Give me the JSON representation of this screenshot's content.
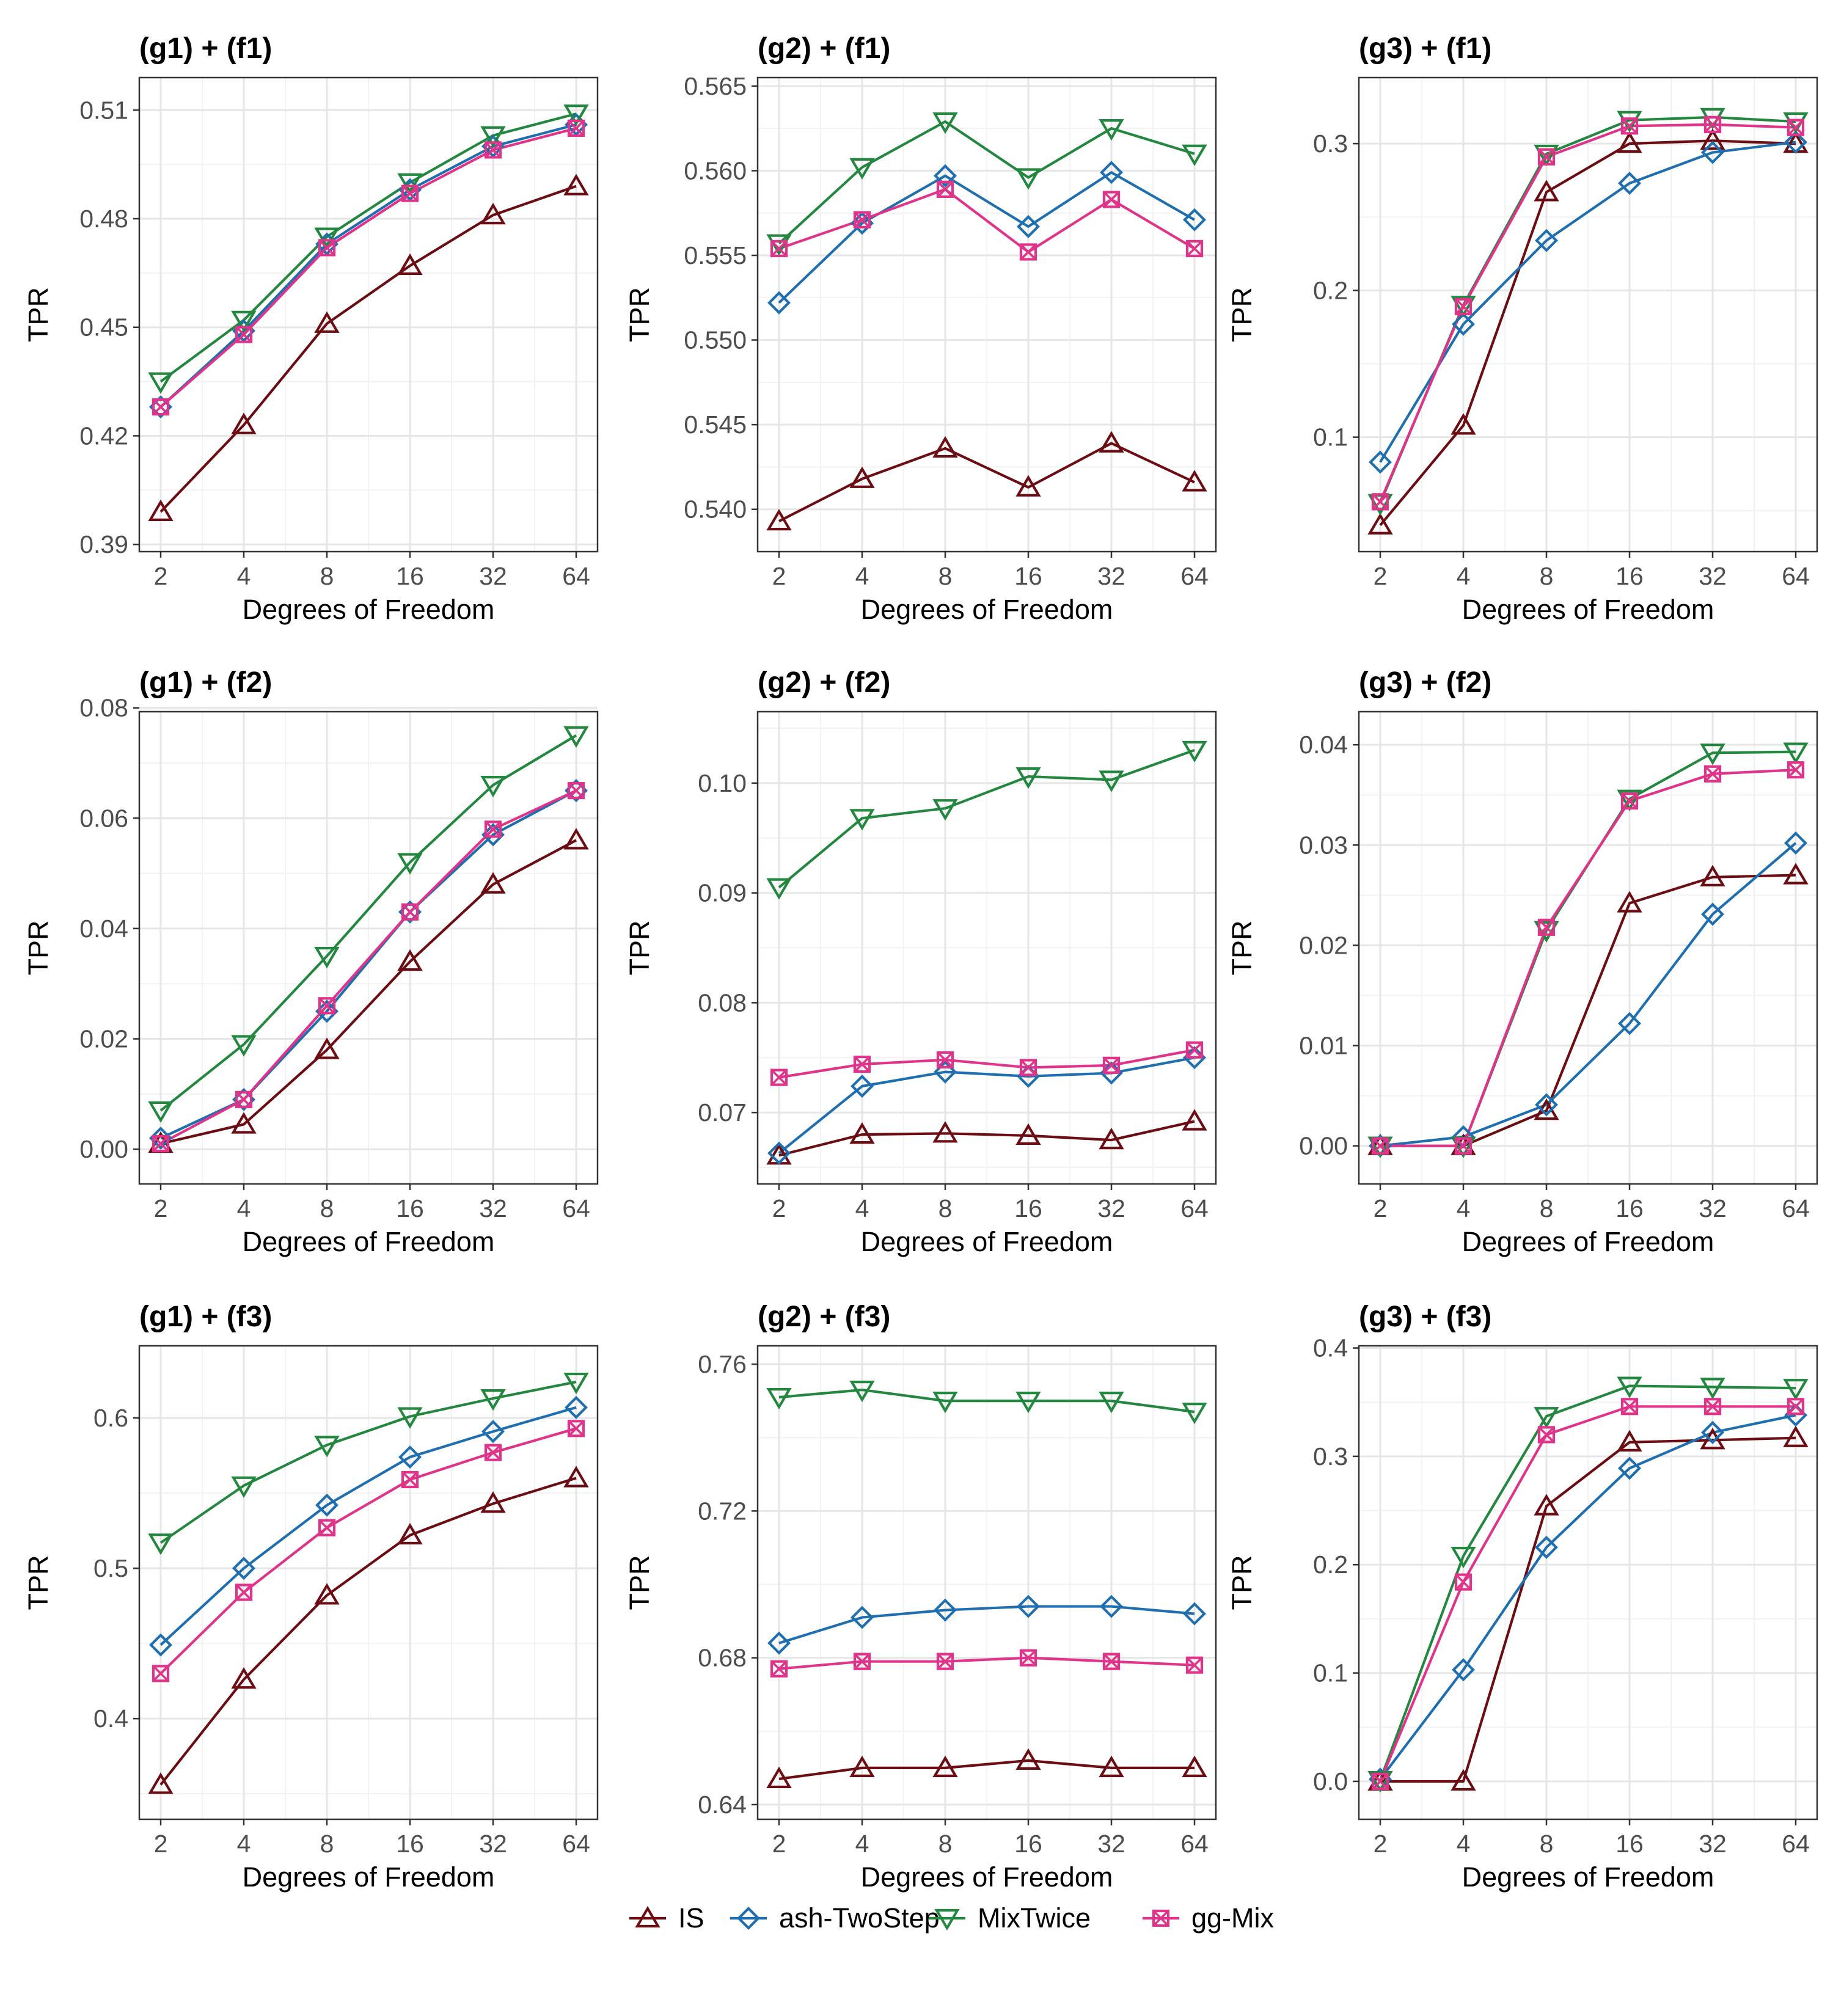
{
  "xlabel": "Degrees of Freedom",
  "ylabel": "TPR",
  "x_ticks": [
    "2",
    "4",
    "8",
    "16",
    "32",
    "64"
  ],
  "series_styles": [
    {
      "name": "IS",
      "color": "#6b0d12",
      "marker": "triangle-up"
    },
    {
      "name": "ash-TwoStep",
      "color": "#1f6fb0",
      "marker": "diamond"
    },
    {
      "name": "MixTwice",
      "color": "#23873f",
      "marker": "triangle-down"
    },
    {
      "name": "gg-Mix",
      "color": "#e0338a",
      "marker": "boxed-x"
    }
  ],
  "legend": {
    "position": "bottom",
    "items": [
      "IS",
      "ash-TwoStep",
      "MixTwice",
      "gg-Mix"
    ]
  },
  "chart_data": [
    {
      "type": "line",
      "title": "(g1) + (f1)",
      "xlabel": "Degrees of Freedom",
      "ylabel": "TPR",
      "categories": [
        "2",
        "4",
        "8",
        "16",
        "32",
        "64"
      ],
      "ylim": [
        0.388,
        0.519
      ],
      "yticks": [
        0.39,
        0.42,
        0.45,
        0.48,
        0.51
      ],
      "ytick_labels": [
        "0.39",
        "0.42",
        "0.45",
        "0.48",
        "0.51"
      ],
      "series": [
        {
          "name": "IS",
          "values": [
            0.399,
            0.423,
            0.451,
            0.467,
            0.481,
            0.489
          ]
        },
        {
          "name": "ash-TwoStep",
          "values": [
            0.428,
            0.449,
            0.473,
            0.488,
            0.5,
            0.506
          ]
        },
        {
          "name": "MixTwice",
          "values": [
            0.435,
            0.452,
            0.475,
            0.49,
            0.503,
            0.509
          ]
        },
        {
          "name": "gg-Mix",
          "values": [
            0.428,
            0.448,
            0.472,
            0.487,
            0.499,
            0.505
          ]
        }
      ]
    },
    {
      "type": "line",
      "title": "(g2) + (f1)",
      "xlabel": "Degrees of Freedom",
      "ylabel": "TPR",
      "categories": [
        "2",
        "4",
        "8",
        "16",
        "32",
        "64"
      ],
      "ylim": [
        0.5375,
        0.5655
      ],
      "yticks": [
        0.54,
        0.545,
        0.55,
        0.555,
        0.56,
        0.565
      ],
      "ytick_labels": [
        "0.540",
        "0.545",
        "0.550",
        "0.555",
        "0.560",
        "0.565"
      ],
      "series": [
        {
          "name": "IS",
          "values": [
            0.5393,
            0.5418,
            0.5436,
            0.5413,
            0.5439,
            0.5416
          ]
        },
        {
          "name": "ash-TwoStep",
          "values": [
            0.5522,
            0.5569,
            0.5597,
            0.5567,
            0.5599,
            0.5571
          ]
        },
        {
          "name": "MixTwice",
          "values": [
            0.5557,
            0.5602,
            0.5629,
            0.5596,
            0.5625,
            0.561
          ]
        },
        {
          "name": "gg-Mix",
          "values": [
            0.5554,
            0.5571,
            0.5589,
            0.5552,
            0.5583,
            0.5554
          ]
        }
      ]
    },
    {
      "type": "line",
      "title": "(g3) + (f1)",
      "xlabel": "Degrees of Freedom",
      "ylabel": "TPR",
      "categories": [
        "2",
        "4",
        "8",
        "16",
        "32",
        "64"
      ],
      "ylim": [
        0.022,
        0.345
      ],
      "yticks": [
        0.1,
        0.2,
        0.3
      ],
      "ytick_labels": [
        "0.1",
        "0.2",
        "0.3"
      ],
      "series": [
        {
          "name": "IS",
          "values": [
            0.04,
            0.108,
            0.267,
            0.3,
            0.302,
            0.3
          ]
        },
        {
          "name": "ash-TwoStep",
          "values": [
            0.083,
            0.177,
            0.234,
            0.273,
            0.294,
            0.301
          ]
        },
        {
          "name": "MixTwice",
          "values": [
            0.055,
            0.19,
            0.293,
            0.316,
            0.318,
            0.315
          ]
        },
        {
          "name": "gg-Mix",
          "values": [
            0.056,
            0.189,
            0.291,
            0.312,
            0.313,
            0.311
          ]
        }
      ]
    },
    {
      "type": "line",
      "title": "(g1) + (f2)",
      "xlabel": "Degrees of Freedom",
      "ylabel": "TPR",
      "categories": [
        "2",
        "4",
        "8",
        "16",
        "32",
        "64"
      ],
      "ylim": [
        -0.0063,
        0.0793
      ],
      "yticks": [
        0.0,
        0.02,
        0.04,
        0.06,
        0.08
      ],
      "ytick_labels": [
        "0.00",
        "0.02",
        "0.04",
        "0.06",
        "0.08"
      ],
      "series": [
        {
          "name": "IS",
          "values": [
            0.001,
            0.0045,
            0.018,
            0.034,
            0.048,
            0.056
          ]
        },
        {
          "name": "ash-TwoStep",
          "values": [
            0.002,
            0.009,
            0.025,
            0.043,
            0.057,
            0.065
          ]
        },
        {
          "name": "MixTwice",
          "values": [
            0.007,
            0.019,
            0.035,
            0.052,
            0.066,
            0.075
          ]
        },
        {
          "name": "gg-Mix",
          "values": [
            0.001,
            0.009,
            0.026,
            0.043,
            0.058,
            0.065
          ]
        }
      ]
    },
    {
      "type": "line",
      "title": "(g2) + (f2)",
      "xlabel": "Degrees of Freedom",
      "ylabel": "TPR",
      "categories": [
        "2",
        "4",
        "8",
        "16",
        "32",
        "64"
      ],
      "ylim": [
        0.0635,
        0.1065
      ],
      "yticks": [
        0.07,
        0.08,
        0.09,
        0.1
      ],
      "ytick_labels": [
        "0.07",
        "0.08",
        "0.09",
        "0.10"
      ],
      "series": [
        {
          "name": "IS",
          "values": [
            0.0661,
            0.068,
            0.0681,
            0.0679,
            0.0675,
            0.0692
          ]
        },
        {
          "name": "ash-TwoStep",
          "values": [
            0.0663,
            0.0724,
            0.0737,
            0.0733,
            0.0736,
            0.075
          ]
        },
        {
          "name": "MixTwice",
          "values": [
            0.0905,
            0.0968,
            0.0977,
            0.1006,
            0.1003,
            0.103
          ]
        },
        {
          "name": "gg-Mix",
          "values": [
            0.0732,
            0.0744,
            0.0748,
            0.0741,
            0.0743,
            0.0757
          ]
        }
      ]
    },
    {
      "type": "line",
      "title": "(g3) + (f2)",
      "xlabel": "Degrees of Freedom",
      "ylabel": "TPR",
      "categories": [
        "2",
        "4",
        "8",
        "16",
        "32",
        "64"
      ],
      "ylim": [
        -0.0038,
        0.0433
      ],
      "yticks": [
        0.0,
        0.01,
        0.02,
        0.03,
        0.04
      ],
      "ytick_labels": [
        "0.00",
        "0.01",
        "0.02",
        "0.03",
        "0.04"
      ],
      "series": [
        {
          "name": "IS",
          "values": [
            0.0,
            0.0,
            0.0035,
            0.0242,
            0.0268,
            0.027
          ]
        },
        {
          "name": "ash-TwoStep",
          "values": [
            0.0,
            0.0009,
            0.0041,
            0.0122,
            0.0231,
            0.0302
          ]
        },
        {
          "name": "MixTwice",
          "values": [
            0.0,
            0.0,
            0.0215,
            0.0346,
            0.0392,
            0.0393
          ]
        },
        {
          "name": "gg-Mix",
          "values": [
            0.0,
            0.0,
            0.0218,
            0.0344,
            0.0371,
            0.0375
          ]
        }
      ]
    },
    {
      "type": "line",
      "title": "(g1) + (f3)",
      "xlabel": "Degrees of Freedom",
      "ylabel": "TPR",
      "categories": [
        "2",
        "4",
        "8",
        "16",
        "32",
        "64"
      ],
      "ylim": [
        0.333,
        0.648
      ],
      "yticks": [
        0.4,
        0.5,
        0.6
      ],
      "ytick_labels": [
        "0.4",
        "0.5",
        "0.6"
      ],
      "series": [
        {
          "name": "IS",
          "values": [
            0.356,
            0.426,
            0.482,
            0.522,
            0.543,
            0.56
          ]
        },
        {
          "name": "ash-TwoStep",
          "values": [
            0.449,
            0.5,
            0.542,
            0.574,
            0.591,
            0.607
          ]
        },
        {
          "name": "MixTwice",
          "values": [
            0.517,
            0.555,
            0.582,
            0.601,
            0.613,
            0.624
          ]
        },
        {
          "name": "gg-Mix",
          "values": [
            0.43,
            0.484,
            0.527,
            0.559,
            0.577,
            0.593
          ]
        }
      ]
    },
    {
      "type": "line",
      "title": "(g2) + (f3)",
      "xlabel": "Degrees of Freedom",
      "ylabel": "TPR",
      "categories": [
        "2",
        "4",
        "8",
        "16",
        "32",
        "64"
      ],
      "ylim": [
        0.636,
        0.765
      ],
      "yticks": [
        0.64,
        0.68,
        0.72,
        0.76
      ],
      "ytick_labels": [
        "0.64",
        "0.68",
        "0.72",
        "0.76"
      ],
      "series": [
        {
          "name": "IS",
          "values": [
            0.647,
            0.65,
            0.65,
            0.652,
            0.65,
            0.65
          ]
        },
        {
          "name": "ash-TwoStep",
          "values": [
            0.684,
            0.691,
            0.693,
            0.694,
            0.694,
            0.692
          ]
        },
        {
          "name": "MixTwice",
          "values": [
            0.751,
            0.753,
            0.75,
            0.75,
            0.75,
            0.747
          ]
        },
        {
          "name": "gg-Mix",
          "values": [
            0.677,
            0.679,
            0.679,
            0.68,
            0.679,
            0.678
          ]
        }
      ]
    },
    {
      "type": "line",
      "title": "(g3) + (f3)",
      "xlabel": "Degrees of Freedom",
      "ylabel": "TPR",
      "categories": [
        "2",
        "4",
        "8",
        "16",
        "32",
        "64"
      ],
      "ylim": [
        -0.035,
        0.402
      ],
      "yticks": [
        0.0,
        0.1,
        0.2,
        0.3,
        0.4
      ],
      "ytick_labels": [
        "0.0",
        "0.1",
        "0.2",
        "0.3",
        "0.4"
      ],
      "series": [
        {
          "name": "IS",
          "values": [
            0.0,
            0.0,
            0.254,
            0.313,
            0.315,
            0.317
          ]
        },
        {
          "name": "ash-TwoStep",
          "values": [
            0.002,
            0.103,
            0.216,
            0.289,
            0.322,
            0.338
          ]
        },
        {
          "name": "MixTwice",
          "values": [
            0.001,
            0.208,
            0.337,
            0.365,
            0.364,
            0.363
          ]
        },
        {
          "name": "gg-Mix",
          "values": [
            0.0,
            0.184,
            0.32,
            0.346,
            0.346,
            0.346
          ]
        }
      ]
    }
  ]
}
